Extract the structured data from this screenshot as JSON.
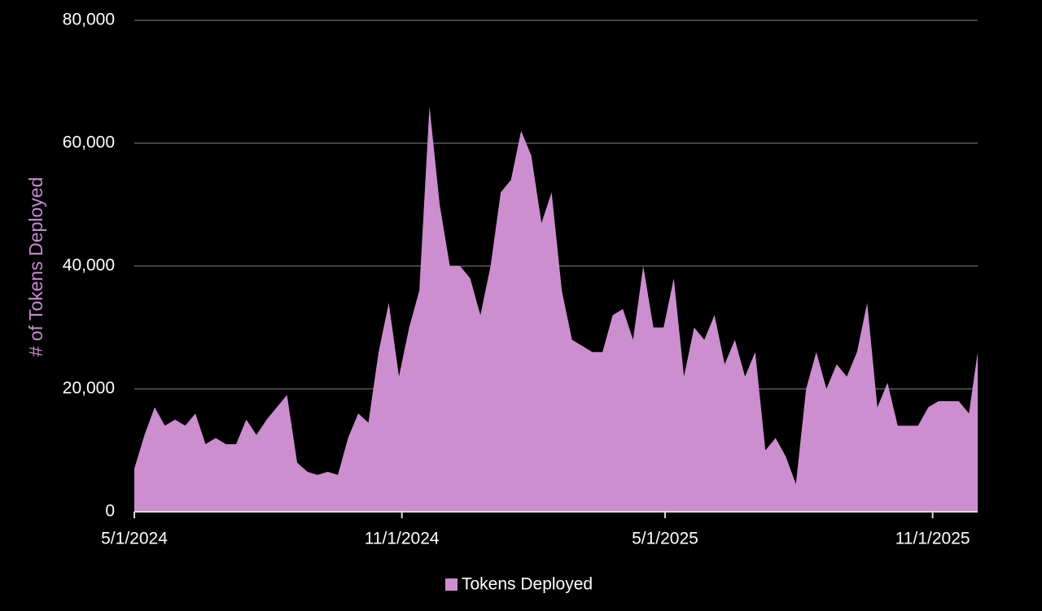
{
  "chart_data": {
    "type": "area",
    "y_label": "# of Tokens Deployed",
    "legend_position": "bottom",
    "grid": true,
    "x": [
      "2024-05-01",
      "2024-05-08",
      "2024-05-15",
      "2024-05-22",
      "2024-05-29",
      "2024-06-05",
      "2024-06-12",
      "2024-06-19",
      "2024-06-26",
      "2024-07-03",
      "2024-07-10",
      "2024-07-17",
      "2024-07-24",
      "2024-07-31",
      "2024-08-07",
      "2024-08-14",
      "2024-08-21",
      "2024-08-28",
      "2024-09-04",
      "2024-09-11",
      "2024-09-18",
      "2024-09-25",
      "2024-10-02",
      "2024-10-09",
      "2024-10-16",
      "2024-10-23",
      "2024-10-30",
      "2024-11-06",
      "2024-11-13",
      "2024-11-20",
      "2024-11-27",
      "2024-12-04",
      "2024-12-11",
      "2024-12-18",
      "2024-12-25",
      "2025-01-01",
      "2025-01-08",
      "2025-01-15",
      "2025-01-22",
      "2025-01-29",
      "2025-02-05",
      "2025-02-12",
      "2025-02-19",
      "2025-02-26",
      "2025-03-05",
      "2025-03-12",
      "2025-03-19",
      "2025-03-26",
      "2025-04-02",
      "2025-04-09",
      "2025-04-16",
      "2025-04-23",
      "2025-04-30",
      "2025-05-07",
      "2025-05-14",
      "2025-05-21",
      "2025-05-28",
      "2025-06-04",
      "2025-06-11",
      "2025-06-18",
      "2025-06-25",
      "2025-07-02",
      "2025-07-09",
      "2025-07-16",
      "2025-07-23",
      "2025-07-30",
      "2025-08-06",
      "2025-08-13",
      "2025-08-20",
      "2025-08-27",
      "2025-09-03",
      "2025-09-10",
      "2025-09-17",
      "2025-09-24",
      "2025-10-01",
      "2025-10-08",
      "2025-10-15",
      "2025-10-22",
      "2025-10-29",
      "2025-11-05",
      "2025-11-12",
      "2025-11-19",
      "2025-11-26",
      "2025-12-02"
    ],
    "series": [
      {
        "name": "Tokens Deployed",
        "color": "#cc8ecf",
        "values": [
          7000,
          12500,
          17000,
          14000,
          15000,
          14000,
          16000,
          11000,
          12000,
          11000,
          11000,
          15000,
          12500,
          15000,
          17000,
          19000,
          8000,
          6500,
          6000,
          6500,
          6000,
          12000,
          16000,
          14500,
          26000,
          34000,
          22000,
          30000,
          36000,
          66000,
          50000,
          40000,
          40000,
          38000,
          32000,
          40000,
          52000,
          54000,
          62000,
          58000,
          47000,
          52000,
          36000,
          28000,
          27000,
          26000,
          26000,
          32000,
          33000,
          28000,
          40000,
          30000,
          30000,
          38000,
          22000,
          30000,
          28000,
          32000,
          24000,
          28000,
          22000,
          26000,
          10000,
          12000,
          9000,
          4500,
          20000,
          26000,
          20000,
          24000,
          22000,
          26000,
          34000,
          17000,
          21000,
          14000,
          14000,
          14000,
          17000,
          18000,
          18000,
          18000,
          16000,
          26000
        ]
      }
    ],
    "xlim": [
      "2024-05-01",
      "2025-12-02"
    ],
    "xticks": [
      {
        "value": "2024-05-01",
        "label": "5/1/2024"
      },
      {
        "value": "2024-11-01",
        "label": "11/1/2024"
      },
      {
        "value": "2025-05-01",
        "label": "5/1/2025"
      },
      {
        "value": "2025-11-01",
        "label": "11/1/2025"
      }
    ],
    "ylim": [
      0,
      80000
    ],
    "yticks": [
      {
        "value": 0,
        "label": "0"
      },
      {
        "value": 20000,
        "label": "20,000"
      },
      {
        "value": 40000,
        "label": "40,000"
      },
      {
        "value": 60000,
        "label": "60,000"
      },
      {
        "value": 80000,
        "label": "80,000"
      }
    ]
  }
}
